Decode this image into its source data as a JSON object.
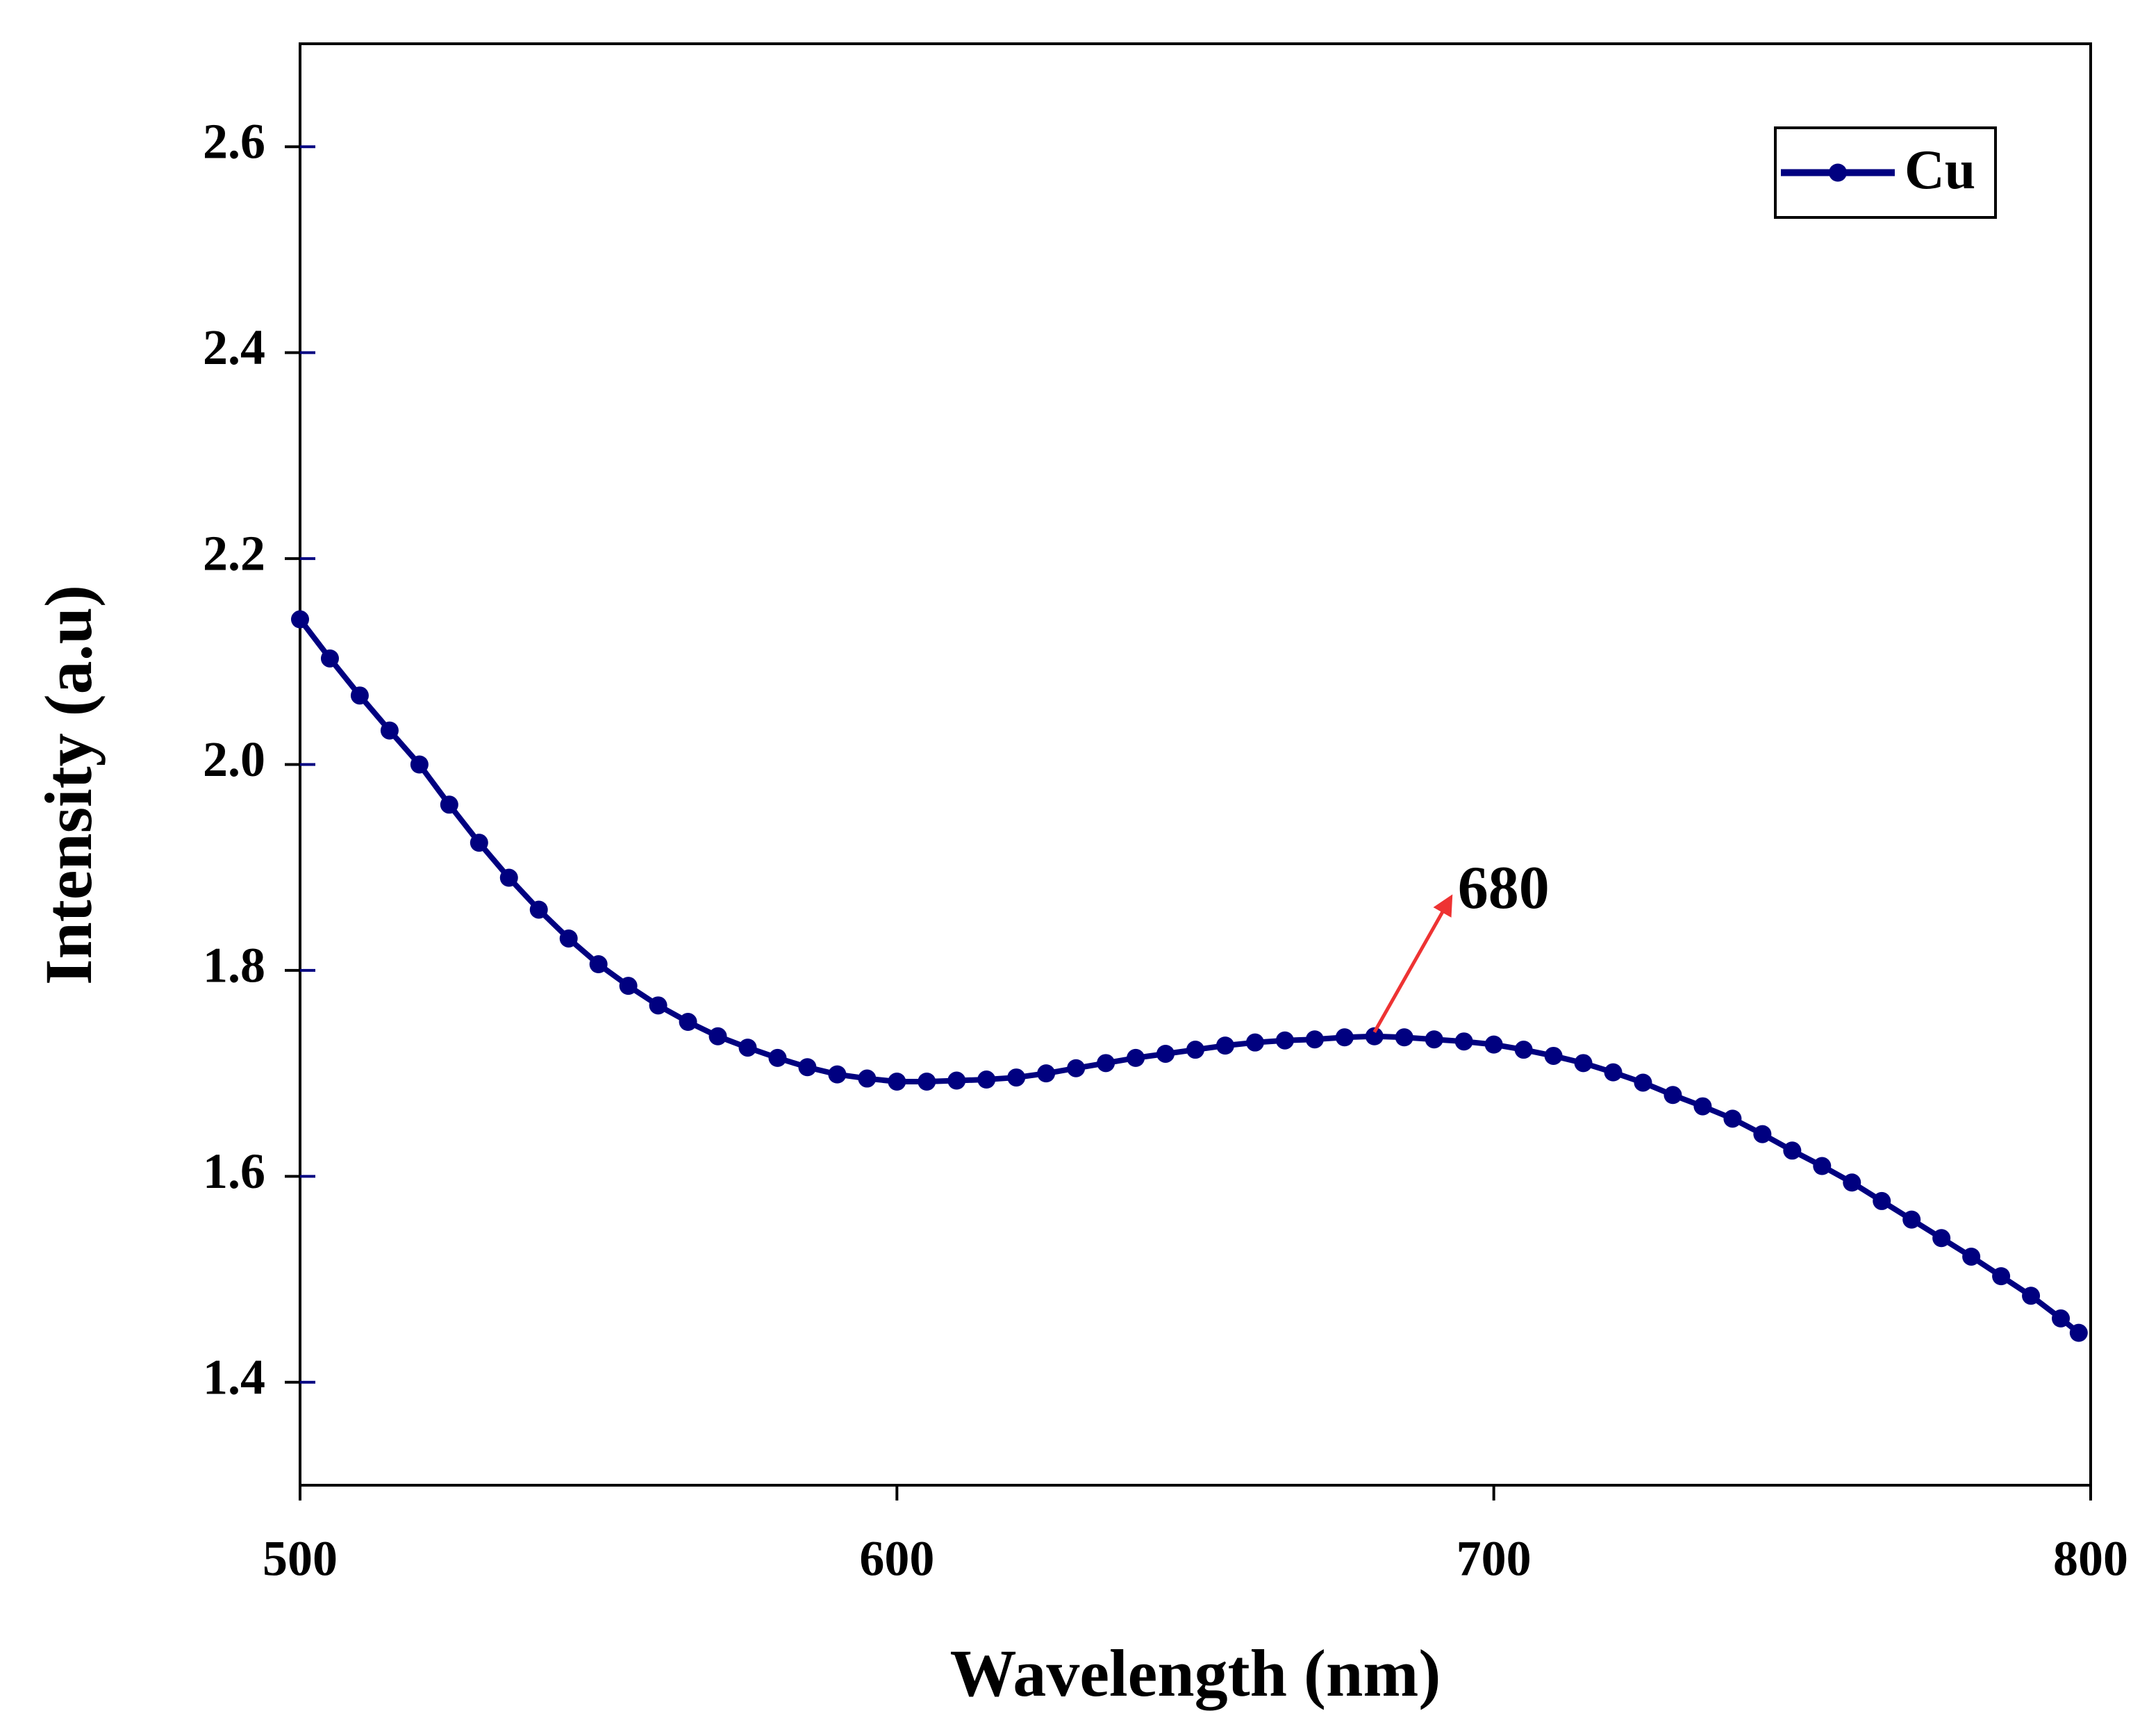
{
  "chart_data": {
    "type": "line",
    "x_label": "Wavelength (nm)",
    "y_label": "Intensity (a.u)",
    "x": [
      500,
      505,
      510,
      515,
      520,
      525,
      530,
      535,
      540,
      545,
      550,
      555,
      560,
      565,
      570,
      575,
      580,
      585,
      590,
      595,
      600,
      605,
      610,
      615,
      620,
      625,
      630,
      635,
      640,
      645,
      650,
      655,
      660,
      665,
      670,
      675,
      680,
      685,
      690,
      695,
      700,
      705,
      710,
      715,
      720,
      725,
      730,
      735,
      740,
      745,
      750,
      755,
      760,
      765,
      770,
      775,
      780,
      785,
      790,
      795,
      798
    ],
    "series": [
      {
        "name": "Cu",
        "color": "#000080",
        "values": [
          2.141,
          2.103,
          2.067,
          2.033,
          2.0,
          1.961,
          1.924,
          1.89,
          1.859,
          1.831,
          1.806,
          1.785,
          1.766,
          1.75,
          1.736,
          1.725,
          1.715,
          1.706,
          1.699,
          1.695,
          1.692,
          1.692,
          1.693,
          1.694,
          1.696,
          1.7,
          1.705,
          1.71,
          1.715,
          1.719,
          1.723,
          1.727,
          1.73,
          1.732,
          1.733,
          1.735,
          1.736,
          1.735,
          1.733,
          1.731,
          1.728,
          1.723,
          1.717,
          1.71,
          1.701,
          1.691,
          1.679,
          1.668,
          1.656,
          1.641,
          1.625,
          1.61,
          1.594,
          1.576,
          1.558,
          1.54,
          1.522,
          1.503,
          1.484,
          1.462,
          1.448
        ]
      }
    ],
    "xlim": [
      500,
      800
    ],
    "xticks": [
      500,
      600,
      700,
      800
    ],
    "ylim": [
      1.3,
      2.7
    ],
    "yticks": [
      1.4,
      1.6,
      1.8,
      {
        "value": 2,
        "label": "2.0"
      },
      2.2,
      2.4,
      2.6
    ],
    "legend": "upper right",
    "annotations": [
      {
        "text": "680",
        "x": 680,
        "color": "#ee3333"
      }
    ]
  }
}
